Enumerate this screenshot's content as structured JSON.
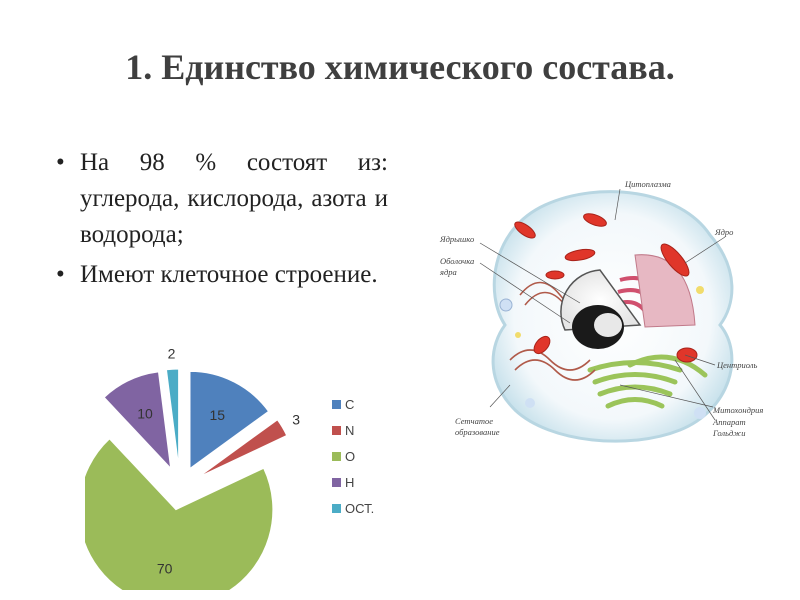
{
  "slide": {
    "title": "1. Единство химического состава.",
    "bullets": [
      "На 98 % состоят из: углерода, кислорода, азота и водорода;",
      "Имеют клеточное строение."
    ]
  },
  "chart_data": {
    "type": "pie",
    "categories": [
      "C",
      "N",
      "O",
      "H",
      "ОСТ."
    ],
    "values": [
      15,
      3,
      70,
      10,
      2
    ],
    "colors": [
      "#4f81bd",
      "#c0504d",
      "#9bbb59",
      "#8064a2",
      "#4bacc6"
    ],
    "data_labels": [
      "15",
      "3",
      "70",
      "10",
      "2"
    ],
    "legend_position": "right",
    "exploded": true
  },
  "cell_diagram": {
    "labels": {
      "cytoplasm": "Цитоплазма",
      "nucleolus": "Ядрышко",
      "nucleus": "Ядро",
      "envelope_1": "Оболочка",
      "envelope_2": "ядра",
      "centriole": "Центриоль",
      "mitochondria": "Митохондрия",
      "golgi_1": "Аппарат",
      "golgi_2": "Гольджи",
      "er_1": "Сетчатое",
      "er_2": "образование"
    }
  }
}
